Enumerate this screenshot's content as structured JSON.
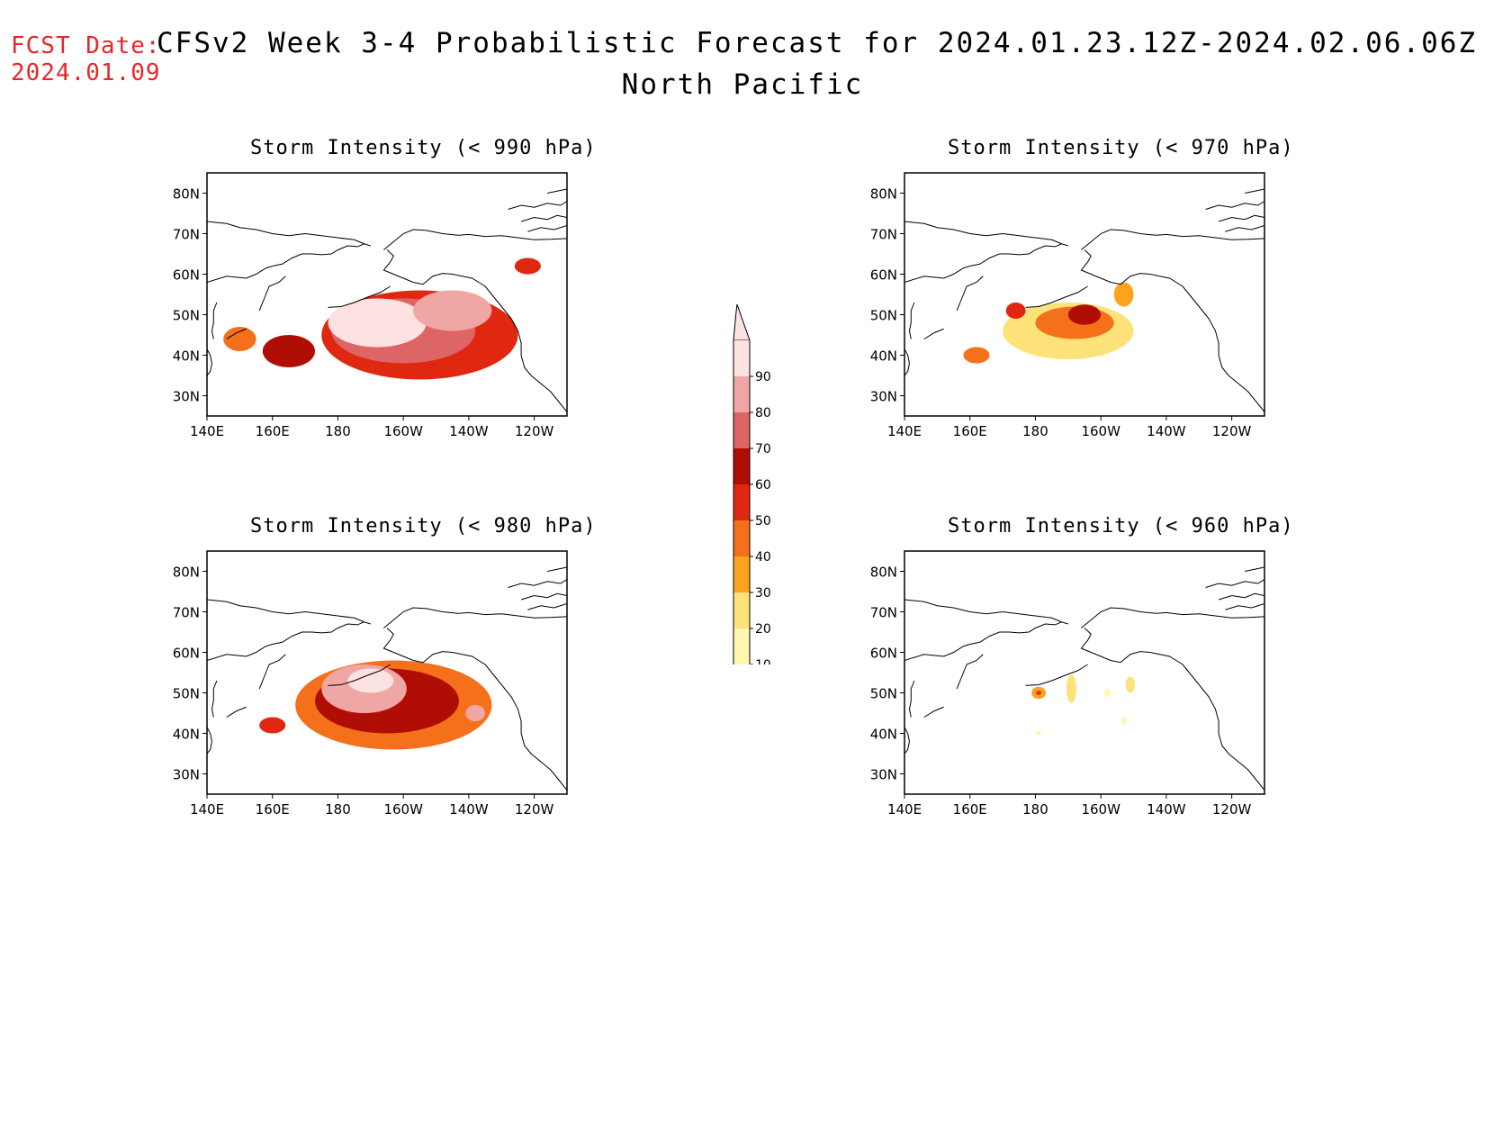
{
  "header": {
    "fcst_label": "FCST Date:",
    "fcst_date": "2024.01.09",
    "title": "CFSv2 Week 3-4 Probabilistic Forecast for 2024.01.23.12Z-2024.02.06.06Z",
    "subtitle": "North Pacific"
  },
  "axes": {
    "lat_ticks": [
      "80N",
      "70N",
      "60N",
      "50N",
      "40N",
      "30N"
    ],
    "lat_values": [
      80,
      70,
      60,
      50,
      40,
      30
    ],
    "lon_ticks": [
      "140E",
      "160E",
      "180",
      "160W",
      "140W",
      "120W"
    ],
    "lon_values": [
      140,
      160,
      180,
      200,
      220,
      240
    ],
    "lon_range": [
      140,
      250
    ],
    "lat_range": [
      25,
      85
    ]
  },
  "colorbar": {
    "levels": [
      "10",
      "20",
      "30",
      "40",
      "50",
      "60",
      "70",
      "80",
      "90"
    ],
    "colors": [
      "#fff6b0",
      "#fde27a",
      "#fba31c",
      "#f5701a",
      "#e0270f",
      "#b00d05",
      "#de6565",
      "#f1a6a6",
      "#fde2e2"
    ]
  },
  "panels": [
    {
      "id": "p990",
      "title": "Storm Intensity (< 990 hPa)",
      "blobs": [
        {
          "lon": 205,
          "lat": 45,
          "rx": 30,
          "ry": 11,
          "level": 5
        },
        {
          "lon": 200,
          "lat": 46,
          "rx": 22,
          "ry": 8,
          "level": 7
        },
        {
          "lon": 192,
          "lat": 48,
          "rx": 15,
          "ry": 6,
          "level": 9
        },
        {
          "lon": 215,
          "lat": 51,
          "rx": 12,
          "ry": 5,
          "level": 8
        },
        {
          "lon": 165,
          "lat": 41,
          "rx": 8,
          "ry": 4,
          "level": 6
        },
        {
          "lon": 150,
          "lat": 44,
          "rx": 5,
          "ry": 3,
          "level": 4
        },
        {
          "lon": 238,
          "lat": 62,
          "rx": 4,
          "ry": 2,
          "level": 5
        }
      ]
    },
    {
      "id": "p970",
      "title": "Storm Intensity (< 970 hPa)",
      "blobs": [
        {
          "lon": 190,
          "lat": 46,
          "rx": 20,
          "ry": 7,
          "level": 2
        },
        {
          "lon": 192,
          "lat": 48,
          "rx": 12,
          "ry": 4,
          "level": 4
        },
        {
          "lon": 195,
          "lat": 50,
          "rx": 5,
          "ry": 2.5,
          "level": 6
        },
        {
          "lon": 174,
          "lat": 51,
          "rx": 3,
          "ry": 2,
          "level": 5
        },
        {
          "lon": 162,
          "lat": 40,
          "rx": 4,
          "ry": 2,
          "level": 4
        },
        {
          "lon": 207,
          "lat": 55,
          "rx": 3,
          "ry": 3,
          "level": 3
        }
      ]
    },
    {
      "id": "p980",
      "title": "Storm Intensity (< 980 hPa)",
      "blobs": [
        {
          "lon": 197,
          "lat": 47,
          "rx": 30,
          "ry": 11,
          "level": 4
        },
        {
          "lon": 195,
          "lat": 48,
          "rx": 22,
          "ry": 8,
          "level": 6
        },
        {
          "lon": 188,
          "lat": 51,
          "rx": 13,
          "ry": 6,
          "level": 8
        },
        {
          "lon": 190,
          "lat": 53,
          "rx": 7,
          "ry": 3,
          "level": 9
        },
        {
          "lon": 160,
          "lat": 42,
          "rx": 4,
          "ry": 2,
          "level": 5
        },
        {
          "lon": 222,
          "lat": 45,
          "rx": 3,
          "ry": 2,
          "level": 8
        }
      ]
    },
    {
      "id": "p960",
      "title": "Storm Intensity (< 960 hPa)",
      "blobs": [
        {
          "lon": 181,
          "lat": 50,
          "rx": 2.2,
          "ry": 1.5,
          "level": 3
        },
        {
          "lon": 181,
          "lat": 50,
          "rx": 0.8,
          "ry": 0.5,
          "level": 5
        },
        {
          "lon": 191,
          "lat": 51,
          "rx": 1.5,
          "ry": 3.5,
          "level": 2
        },
        {
          "lon": 209,
          "lat": 52,
          "rx": 1.4,
          "ry": 2,
          "level": 2
        },
        {
          "lon": 202,
          "lat": 50,
          "rx": 1,
          "ry": 1,
          "level": 1
        },
        {
          "lon": 207,
          "lat": 43,
          "rx": 0.7,
          "ry": 1,
          "level": 1
        },
        {
          "lon": 181,
          "lat": 40,
          "rx": 1,
          "ry": 0.4,
          "level": 1
        }
      ]
    }
  ]
}
